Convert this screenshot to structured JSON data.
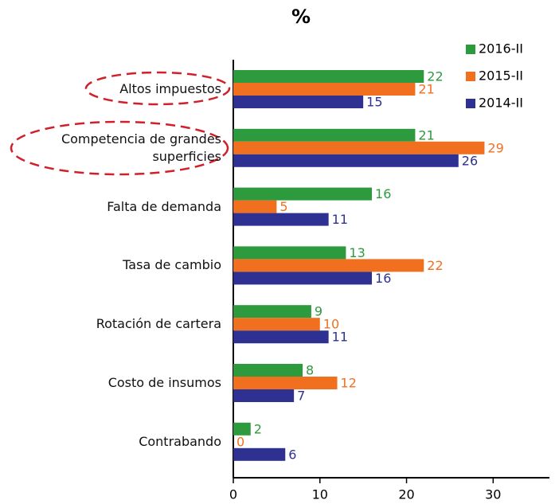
{
  "chart_data": {
    "type": "hbar",
    "title": "%",
    "categories": [
      "Altos impuestos",
      "Competencia de grandes superficies",
      "Falta de demanda",
      "Tasa de cambio",
      "Rotación de cartera",
      "Costo de insumos",
      "Contrabando"
    ],
    "series": [
      {
        "name": "2016-II",
        "color": "#2e9a3e",
        "values": [
          22,
          21,
          16,
          13,
          9,
          8,
          2
        ]
      },
      {
        "name": "2015-II",
        "color": "#f07020",
        "values": [
          21,
          29,
          5,
          22,
          10,
          12,
          0
        ]
      },
      {
        "name": "2014-II",
        "color": "#2e3192",
        "values": [
          15,
          26,
          11,
          16,
          11,
          7,
          6
        ]
      }
    ],
    "xlim": [
      0,
      36.5
    ],
    "xticks": [
      0,
      10,
      20,
      30
    ]
  }
}
